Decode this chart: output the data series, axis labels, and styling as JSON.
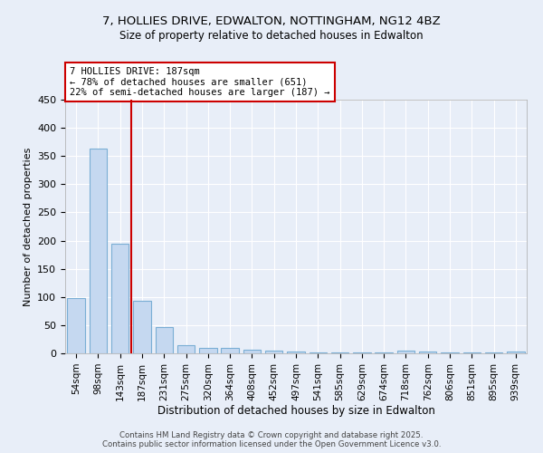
{
  "title1": "7, HOLLIES DRIVE, EDWALTON, NOTTINGHAM, NG12 4BZ",
  "title2": "Size of property relative to detached houses in Edwalton",
  "xlabel": "Distribution of detached houses by size in Edwalton",
  "ylabel": "Number of detached properties",
  "categories": [
    "54sqm",
    "98sqm",
    "143sqm",
    "187sqm",
    "231sqm",
    "275sqm",
    "320sqm",
    "364sqm",
    "408sqm",
    "452sqm",
    "497sqm",
    "541sqm",
    "585sqm",
    "629sqm",
    "674sqm",
    "718sqm",
    "762sqm",
    "806sqm",
    "851sqm",
    "895sqm",
    "939sqm"
  ],
  "values": [
    98,
    363,
    195,
    93,
    46,
    15,
    10,
    10,
    6,
    5,
    4,
    2,
    1,
    1,
    1,
    5,
    4,
    1,
    1,
    1,
    3
  ],
  "bar_color": "#c5d8f0",
  "bar_edge_color": "#7aaed4",
  "marker_index": 3,
  "marker_line_color": "#cc0000",
  "annotation_line1": "7 HOLLIES DRIVE: 187sqm",
  "annotation_line2": "← 78% of detached houses are smaller (651)",
  "annotation_line3": "22% of semi-detached houses are larger (187) →",
  "annotation_box_color": "#ffffff",
  "annotation_box_edge_color": "#cc0000",
  "footer1": "Contains HM Land Registry data © Crown copyright and database right 2025.",
  "footer2": "Contains public sector information licensed under the Open Government Licence v3.0.",
  "background_color": "#e8eef8",
  "plot_bg_color": "#e8eef8",
  "ylim": [
    0,
    450
  ],
  "yticks": [
    0,
    50,
    100,
    150,
    200,
    250,
    300,
    350,
    400,
    450
  ]
}
